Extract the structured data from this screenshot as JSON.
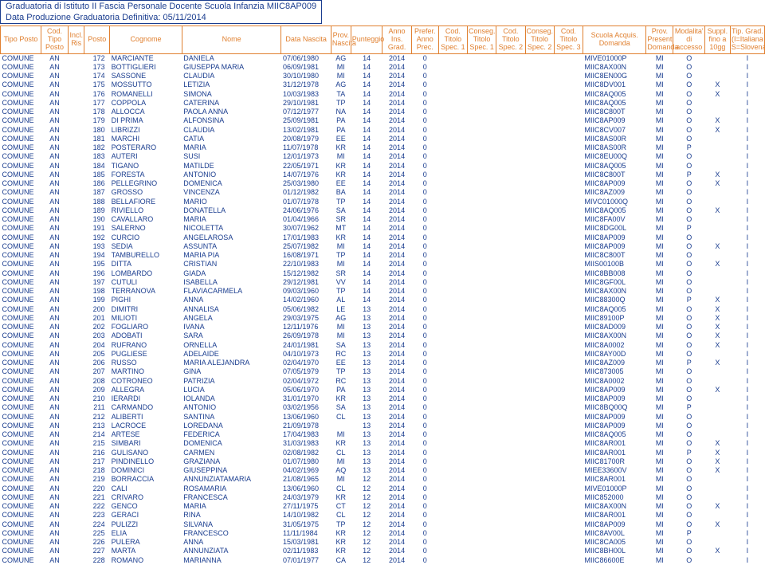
{
  "title_line1": "Graduatoria di Istituto II Fascia Personale Docente Scuola Infanzia MIIC8AP009",
  "title_line2": "Data Produzione Graduatoria Definitiva: 05/11/2014",
  "headers": {
    "tipo_posto": "Tipo Posto",
    "cod_tipo_posto": "Cod. Tipo Posto",
    "incl_ris": "Incl. Ris",
    "posto": "Posto",
    "cognome": "Cognome",
    "nome": "Nome",
    "data_nascita": "Data Nascita",
    "prov_nascita": "Prov. Nascita",
    "punteggio": "Punteggio",
    "anno_ins_grad": "Anno Ins. Grad.",
    "prefer_anno_prec": "Prefer. Anno Prec.",
    "cod_titolo_spec1": "Cod. Titolo Spec. 1",
    "conseg_titolo_spec1": "Conseg. Titolo Spec. 1",
    "cod_titolo_spec2": "Cod. Titolo Spec. 2",
    "conseg_titolo_spec2": "Conseg. Titolo Spec. 2",
    "cod_titolo_spec3": "Cod. Titolo Spec. 3",
    "scuola_acquis": "Scuola Acquis. Domanda",
    "prov_present": "Prov. Present. Domanda",
    "modalita": "Modalita' di accesso",
    "suppl": "Suppl. fino a 10gg",
    "tip_grad": "Tip. Grad. (I=Italiana S=Slovena)"
  },
  "rows": [
    {
      "tp": "COMUNE",
      "ctp": "AN",
      "p": "172",
      "cog": "MARCIANTE",
      "nom": "DANIELA",
      "dn": "07/06/1980",
      "pn": "AG",
      "pt": "14",
      "ai": "2014",
      "pr": "0",
      "sc": "MIVE01000P",
      "pd": "MI",
      "mo": "O",
      "su": "",
      "tg": "I"
    },
    {
      "tp": "COMUNE",
      "ctp": "AN",
      "p": "173",
      "cog": "BOTTIGLIERI",
      "nom": "GIUSEPPA MARIA",
      "dn": "06/09/1981",
      "pn": "MI",
      "pt": "14",
      "ai": "2014",
      "pr": "0",
      "sc": "MIIC8AX00N",
      "pd": "MI",
      "mo": "O",
      "su": "",
      "tg": "I"
    },
    {
      "tp": "COMUNE",
      "ctp": "AN",
      "p": "174",
      "cog": "SASSONE",
      "nom": "CLAUDIA",
      "dn": "30/10/1980",
      "pn": "MI",
      "pt": "14",
      "ai": "2014",
      "pr": "0",
      "sc": "MIIC8EN00G",
      "pd": "MI",
      "mo": "O",
      "su": "",
      "tg": "I"
    },
    {
      "tp": "COMUNE",
      "ctp": "AN",
      "p": "175",
      "cog": "MOSSUTTO",
      "nom": "LETIZIA",
      "dn": "31/12/1978",
      "pn": "AG",
      "pt": "14",
      "ai": "2014",
      "pr": "0",
      "sc": "MIIC8DV001",
      "pd": "MI",
      "mo": "O",
      "su": "X",
      "tg": "I"
    },
    {
      "tp": "COMUNE",
      "ctp": "AN",
      "p": "176",
      "cog": "ROMANELLI",
      "nom": "SIMONA",
      "dn": "10/03/1983",
      "pn": "TA",
      "pt": "14",
      "ai": "2014",
      "pr": "0",
      "sc": "MIIC8AQ005",
      "pd": "MI",
      "mo": "O",
      "su": "X",
      "tg": "I"
    },
    {
      "tp": "COMUNE",
      "ctp": "AN",
      "p": "177",
      "cog": "COPPOLA",
      "nom": "CATERINA",
      "dn": "29/10/1981",
      "pn": "TP",
      "pt": "14",
      "ai": "2014",
      "pr": "0",
      "sc": "MIIC8AQ005",
      "pd": "MI",
      "mo": "O",
      "su": "",
      "tg": "I"
    },
    {
      "tp": "COMUNE",
      "ctp": "AN",
      "p": "178",
      "cog": "ALLOCCA",
      "nom": "PAOLA ANNA",
      "dn": "07/12/1977",
      "pn": "NA",
      "pt": "14",
      "ai": "2014",
      "pr": "0",
      "sc": "MIIC8C800T",
      "pd": "MI",
      "mo": "O",
      "su": "",
      "tg": "I"
    },
    {
      "tp": "COMUNE",
      "ctp": "AN",
      "p": "179",
      "cog": "DI PRIMA",
      "nom": "ALFONSINA",
      "dn": "25/09/1981",
      "pn": "PA",
      "pt": "14",
      "ai": "2014",
      "pr": "0",
      "sc": "MIIC8AP009",
      "pd": "MI",
      "mo": "O",
      "su": "X",
      "tg": "I"
    },
    {
      "tp": "COMUNE",
      "ctp": "AN",
      "p": "180",
      "cog": "LIBRIZZI",
      "nom": "CLAUDIA",
      "dn": "13/02/1981",
      "pn": "PA",
      "pt": "14",
      "ai": "2014",
      "pr": "0",
      "sc": "MIIC8CV007",
      "pd": "MI",
      "mo": "O",
      "su": "X",
      "tg": "I"
    },
    {
      "tp": "COMUNE",
      "ctp": "AN",
      "p": "181",
      "cog": "MARCHI",
      "nom": "CATIA",
      "dn": "20/08/1979",
      "pn": "EE",
      "pt": "14",
      "ai": "2014",
      "pr": "0",
      "sc": "MIIC8AS00R",
      "pd": "MI",
      "mo": "O",
      "su": "",
      "tg": "I"
    },
    {
      "tp": "COMUNE",
      "ctp": "AN",
      "p": "182",
      "cog": "POSTERARO",
      "nom": "MARIA",
      "dn": "11/07/1978",
      "pn": "KR",
      "pt": "14",
      "ai": "2014",
      "pr": "0",
      "sc": "MIIC8AS00R",
      "pd": "MI",
      "mo": "P",
      "su": "",
      "tg": "I"
    },
    {
      "tp": "COMUNE",
      "ctp": "AN",
      "p": "183",
      "cog": "AUTERI",
      "nom": "SUSI",
      "dn": "12/01/1973",
      "pn": "MI",
      "pt": "14",
      "ai": "2014",
      "pr": "0",
      "sc": "MIIC8EU00Q",
      "pd": "MI",
      "mo": "O",
      "su": "",
      "tg": "I"
    },
    {
      "tp": "COMUNE",
      "ctp": "AN",
      "p": "184",
      "cog": "TIGANO",
      "nom": "MATILDE",
      "dn": "22/05/1971",
      "pn": "KR",
      "pt": "14",
      "ai": "2014",
      "pr": "0",
      "sc": "MIIC8AQ005",
      "pd": "MI",
      "mo": "O",
      "su": "",
      "tg": "I"
    },
    {
      "tp": "COMUNE",
      "ctp": "AN",
      "p": "185",
      "cog": "FORESTA",
      "nom": "ANTONIO",
      "dn": "14/07/1976",
      "pn": "KR",
      "pt": "14",
      "ai": "2014",
      "pr": "0",
      "sc": "MIIC8C800T",
      "pd": "MI",
      "mo": "P",
      "su": "X",
      "tg": "I"
    },
    {
      "tp": "COMUNE",
      "ctp": "AN",
      "p": "186",
      "cog": "PELLEGRINO",
      "nom": "DOMENICA",
      "dn": "25/03/1980",
      "pn": "EE",
      "pt": "14",
      "ai": "2014",
      "pr": "0",
      "sc": "MIIC8AP009",
      "pd": "MI",
      "mo": "O",
      "su": "X",
      "tg": "I"
    },
    {
      "tp": "COMUNE",
      "ctp": "AN",
      "p": "187",
      "cog": "GROSSO",
      "nom": "VINCENZA",
      "dn": "01/12/1982",
      "pn": "BA",
      "pt": "14",
      "ai": "2014",
      "pr": "0",
      "sc": "MIIC8AZ009",
      "pd": "MI",
      "mo": "O",
      "su": "",
      "tg": "I"
    },
    {
      "tp": "COMUNE",
      "ctp": "AN",
      "p": "188",
      "cog": "BELLAFIORE",
      "nom": "MARIO",
      "dn": "01/07/1978",
      "pn": "TP",
      "pt": "14",
      "ai": "2014",
      "pr": "0",
      "sc": "MIVC01000Q",
      "pd": "MI",
      "mo": "O",
      "su": "",
      "tg": "I"
    },
    {
      "tp": "COMUNE",
      "ctp": "AN",
      "p": "189",
      "cog": "RIVIELLO",
      "nom": "DONATELLA",
      "dn": "24/06/1976",
      "pn": "SA",
      "pt": "14",
      "ai": "2014",
      "pr": "0",
      "sc": "MIIC8AQ005",
      "pd": "MI",
      "mo": "O",
      "su": "X",
      "tg": "I"
    },
    {
      "tp": "COMUNE",
      "ctp": "AN",
      "p": "190",
      "cog": "CAVALLARO",
      "nom": "MARIA",
      "dn": "01/04/1966",
      "pn": "SR",
      "pt": "14",
      "ai": "2014",
      "pr": "0",
      "sc": "MIIC8FA00V",
      "pd": "MI",
      "mo": "O",
      "su": "",
      "tg": "I"
    },
    {
      "tp": "COMUNE",
      "ctp": "AN",
      "p": "191",
      "cog": "SALERNO",
      "nom": "NICOLETTA",
      "dn": "30/07/1962",
      "pn": "MT",
      "pt": "14",
      "ai": "2014",
      "pr": "0",
      "sc": "MIIC8DG00L",
      "pd": "MI",
      "mo": "P",
      "su": "",
      "tg": "I"
    },
    {
      "tp": "COMUNE",
      "ctp": "AN",
      "p": "192",
      "cog": "CURCIO",
      "nom": "ANGELAROSA",
      "dn": "17/01/1983",
      "pn": "KR",
      "pt": "14",
      "ai": "2014",
      "pr": "0",
      "sc": "MIIC8AP009",
      "pd": "MI",
      "mo": "O",
      "su": "",
      "tg": "I"
    },
    {
      "tp": "COMUNE",
      "ctp": "AN",
      "p": "193",
      "cog": "SEDIA",
      "nom": "ASSUNTA",
      "dn": "25/07/1982",
      "pn": "MI",
      "pt": "14",
      "ai": "2014",
      "pr": "0",
      "sc": "MIIC8AP009",
      "pd": "MI",
      "mo": "O",
      "su": "X",
      "tg": "I"
    },
    {
      "tp": "COMUNE",
      "ctp": "AN",
      "p": "194",
      "cog": "TAMBURELLO",
      "nom": "MARIA PIA",
      "dn": "16/08/1971",
      "pn": "TP",
      "pt": "14",
      "ai": "2014",
      "pr": "0",
      "sc": "MIIC8C800T",
      "pd": "MI",
      "mo": "O",
      "su": "",
      "tg": "I"
    },
    {
      "tp": "COMUNE",
      "ctp": "AN",
      "p": "195",
      "cog": "DITTA",
      "nom": "CRISTIAN",
      "dn": "22/10/1983",
      "pn": "MI",
      "pt": "14",
      "ai": "2014",
      "pr": "0",
      "sc": "MIIS00100B",
      "pd": "MI",
      "mo": "O",
      "su": "X",
      "tg": "I"
    },
    {
      "tp": "COMUNE",
      "ctp": "AN",
      "p": "196",
      "cog": "LOMBARDO",
      "nom": "GIADA",
      "dn": "15/12/1982",
      "pn": "SR",
      "pt": "14",
      "ai": "2014",
      "pr": "0",
      "sc": "MIIC8BB008",
      "pd": "MI",
      "mo": "O",
      "su": "",
      "tg": "I"
    },
    {
      "tp": "COMUNE",
      "ctp": "AN",
      "p": "197",
      "cog": "CUTULI",
      "nom": "ISABELLA",
      "dn": "29/12/1981",
      "pn": "VV",
      "pt": "14",
      "ai": "2014",
      "pr": "0",
      "sc": "MIIC8GF00L",
      "pd": "MI",
      "mo": "O",
      "su": "",
      "tg": "I"
    },
    {
      "tp": "COMUNE",
      "ctp": "AN",
      "p": "198",
      "cog": "TERRANOVA",
      "nom": "FLAVIACARMELA",
      "dn": "09/03/1960",
      "pn": "TP",
      "pt": "14",
      "ai": "2014",
      "pr": "0",
      "sc": "MIIC8AX00N",
      "pd": "MI",
      "mo": "O",
      "su": "",
      "tg": "I"
    },
    {
      "tp": "COMUNE",
      "ctp": "AN",
      "p": "199",
      "cog": "PIGHI",
      "nom": "ANNA",
      "dn": "14/02/1960",
      "pn": "AL",
      "pt": "14",
      "ai": "2014",
      "pr": "0",
      "sc": "MIIC88300Q",
      "pd": "MI",
      "mo": "P",
      "su": "X",
      "tg": "I"
    },
    {
      "tp": "COMUNE",
      "ctp": "AN",
      "p": "200",
      "cog": "DIMITRI",
      "nom": "ANNALISA",
      "dn": "05/06/1982",
      "pn": "LE",
      "pt": "13",
      "ai": "2014",
      "pr": "0",
      "sc": "MIIC8AQ005",
      "pd": "MI",
      "mo": "O",
      "su": "X",
      "tg": "I"
    },
    {
      "tp": "COMUNE",
      "ctp": "AN",
      "p": "201",
      "cog": "MILIOTI",
      "nom": "ANGELA",
      "dn": "29/03/1975",
      "pn": "AG",
      "pt": "13",
      "ai": "2014",
      "pr": "0",
      "sc": "MIIC89100P",
      "pd": "MI",
      "mo": "O",
      "su": "X",
      "tg": "I"
    },
    {
      "tp": "COMUNE",
      "ctp": "AN",
      "p": "202",
      "cog": "FOGLIARO",
      "nom": "IVANA",
      "dn": "12/11/1976",
      "pn": "MI",
      "pt": "13",
      "ai": "2014",
      "pr": "0",
      "sc": "MIIC8AD009",
      "pd": "MI",
      "mo": "O",
      "su": "X",
      "tg": "I"
    },
    {
      "tp": "COMUNE",
      "ctp": "AN",
      "p": "203",
      "cog": "ADOBATI",
      "nom": "SARA",
      "dn": "26/09/1978",
      "pn": "MI",
      "pt": "13",
      "ai": "2014",
      "pr": "0",
      "sc": "MIIC8AX00N",
      "pd": "MI",
      "mo": "O",
      "su": "X",
      "tg": "I"
    },
    {
      "tp": "COMUNE",
      "ctp": "AN",
      "p": "204",
      "cog": "RUFRANO",
      "nom": "ORNELLA",
      "dn": "24/01/1981",
      "pn": "SA",
      "pt": "13",
      "ai": "2014",
      "pr": "0",
      "sc": "MIIC8A0002",
      "pd": "MI",
      "mo": "O",
      "su": "X",
      "tg": "I"
    },
    {
      "tp": "COMUNE",
      "ctp": "AN",
      "p": "205",
      "cog": "PUGLIESE",
      "nom": "ADELAIDE",
      "dn": "04/10/1973",
      "pn": "RC",
      "pt": "13",
      "ai": "2014",
      "pr": "0",
      "sc": "MIIC8AY00D",
      "pd": "MI",
      "mo": "O",
      "su": "",
      "tg": "I"
    },
    {
      "tp": "COMUNE",
      "ctp": "AN",
      "p": "206",
      "cog": "RUSSO",
      "nom": "MARIA ALEJANDRA",
      "dn": "02/04/1970",
      "pn": "EE",
      "pt": "13",
      "ai": "2014",
      "pr": "0",
      "sc": "MIIC8AZ009",
      "pd": "MI",
      "mo": "P",
      "su": "X",
      "tg": "I"
    },
    {
      "tp": "COMUNE",
      "ctp": "AN",
      "p": "207",
      "cog": "MARTINO",
      "nom": "GINA",
      "dn": "07/05/1979",
      "pn": "TP",
      "pt": "13",
      "ai": "2014",
      "pr": "0",
      "sc": "MIIC873005",
      "pd": "MI",
      "mo": "O",
      "su": "",
      "tg": "I"
    },
    {
      "tp": "COMUNE",
      "ctp": "AN",
      "p": "208",
      "cog": "COTRONEO",
      "nom": "PATRIZIA",
      "dn": "02/04/1972",
      "pn": "RC",
      "pt": "13",
      "ai": "2014",
      "pr": "0",
      "sc": "MIIC8A0002",
      "pd": "MI",
      "mo": "O",
      "su": "",
      "tg": "I"
    },
    {
      "tp": "COMUNE",
      "ctp": "AN",
      "p": "209",
      "cog": "ALLEGRA",
      "nom": "LUCIA",
      "dn": "05/06/1970",
      "pn": "PA",
      "pt": "13",
      "ai": "2014",
      "pr": "0",
      "sc": "MIIC8AP009",
      "pd": "MI",
      "mo": "O",
      "su": "X",
      "tg": "I"
    },
    {
      "tp": "COMUNE",
      "ctp": "AN",
      "p": "210",
      "cog": "IERARDI",
      "nom": "IOLANDA",
      "dn": "31/01/1970",
      "pn": "KR",
      "pt": "13",
      "ai": "2014",
      "pr": "0",
      "sc": "MIIC8AP009",
      "pd": "MI",
      "mo": "O",
      "su": "",
      "tg": "I"
    },
    {
      "tp": "COMUNE",
      "ctp": "AN",
      "p": "211",
      "cog": "CARMANDO",
      "nom": "ANTONIO",
      "dn": "03/02/1956",
      "pn": "SA",
      "pt": "13",
      "ai": "2014",
      "pr": "0",
      "sc": "MIIC8BQ00Q",
      "pd": "MI",
      "mo": "P",
      "su": "",
      "tg": "I"
    },
    {
      "tp": "COMUNE",
      "ctp": "AN",
      "p": "212",
      "cog": "ALIBERTI",
      "nom": "SANTINA",
      "dn": "13/06/1960",
      "pn": "CL",
      "pt": "13",
      "ai": "2014",
      "pr": "0",
      "sc": "MIIC8AP009",
      "pd": "MI",
      "mo": "O",
      "su": "",
      "tg": "I"
    },
    {
      "tp": "COMUNE",
      "ctp": "AN",
      "p": "213",
      "cog": "LACROCE",
      "nom": "LOREDANA",
      "dn": "21/09/1978",
      "pn": "",
      "pt": "13",
      "ai": "2014",
      "pr": "0",
      "sc": "MIIC8AP009",
      "pd": "MI",
      "mo": "O",
      "su": "",
      "tg": "I"
    },
    {
      "tp": "COMUNE",
      "ctp": "AN",
      "p": "214",
      "cog": "ARTESE",
      "nom": "FEDERICA",
      "dn": "17/04/1983",
      "pn": "MI",
      "pt": "13",
      "ai": "2014",
      "pr": "0",
      "sc": "MIIC8AQ005",
      "pd": "MI",
      "mo": "O",
      "su": "",
      "tg": "I"
    },
    {
      "tp": "COMUNE",
      "ctp": "AN",
      "p": "215",
      "cog": "SIMBARI",
      "nom": "DOMENICA",
      "dn": "31/03/1983",
      "pn": "KR",
      "pt": "13",
      "ai": "2014",
      "pr": "0",
      "sc": "MIIC8AR001",
      "pd": "MI",
      "mo": "O",
      "su": "X",
      "tg": "I"
    },
    {
      "tp": "COMUNE",
      "ctp": "AN",
      "p": "216",
      "cog": "GULISANO",
      "nom": "CARMEN",
      "dn": "02/08/1982",
      "pn": "CL",
      "pt": "13",
      "ai": "2014",
      "pr": "0",
      "sc": "MIIC8AR001",
      "pd": "MI",
      "mo": "P",
      "su": "X",
      "tg": "I"
    },
    {
      "tp": "COMUNE",
      "ctp": "AN",
      "p": "217",
      "cog": "PINDINELLO",
      "nom": "GRAZIANA",
      "dn": "01/07/1980",
      "pn": "MI",
      "pt": "13",
      "ai": "2014",
      "pr": "0",
      "sc": "MIIC81700R",
      "pd": "MI",
      "mo": "O",
      "su": "X",
      "tg": "I"
    },
    {
      "tp": "COMUNE",
      "ctp": "AN",
      "p": "218",
      "cog": "DOMINICI",
      "nom": "GIUSEPPINA",
      "dn": "04/02/1969",
      "pn": "AQ",
      "pt": "13",
      "ai": "2014",
      "pr": "0",
      "sc": "MIEE33600V",
      "pd": "MI",
      "mo": "O",
      "su": "X",
      "tg": "I"
    },
    {
      "tp": "COMUNE",
      "ctp": "AN",
      "p": "219",
      "cog": "BORRACCIA",
      "nom": "ANNUNZIATAMARIA",
      "dn": "21/08/1965",
      "pn": "MI",
      "pt": "12",
      "ai": "2014",
      "pr": "0",
      "sc": "MIIC8AR001",
      "pd": "MI",
      "mo": "O",
      "su": "",
      "tg": "I"
    },
    {
      "tp": "COMUNE",
      "ctp": "AN",
      "p": "220",
      "cog": "CALI",
      "nom": "ROSAMARIA",
      "dn": "13/06/1960",
      "pn": "CL",
      "pt": "12",
      "ai": "2014",
      "pr": "0",
      "sc": "MIVE01000P",
      "pd": "MI",
      "mo": "O",
      "su": "",
      "tg": "I"
    },
    {
      "tp": "COMUNE",
      "ctp": "AN",
      "p": "221",
      "cog": "CRIVARO",
      "nom": "FRANCESCA",
      "dn": "24/03/1979",
      "pn": "KR",
      "pt": "12",
      "ai": "2014",
      "pr": "0",
      "sc": "MIIC852000",
      "pd": "MI",
      "mo": "O",
      "su": "",
      "tg": "I"
    },
    {
      "tp": "COMUNE",
      "ctp": "AN",
      "p": "222",
      "cog": "GENCO",
      "nom": "MARIA",
      "dn": "27/11/1975",
      "pn": "CT",
      "pt": "12",
      "ai": "2014",
      "pr": "0",
      "sc": "MIIC8AX00N",
      "pd": "MI",
      "mo": "O",
      "su": "X",
      "tg": "I"
    },
    {
      "tp": "COMUNE",
      "ctp": "AN",
      "p": "223",
      "cog": "GERACI",
      "nom": "RINA",
      "dn": "14/10/1982",
      "pn": "CL",
      "pt": "12",
      "ai": "2014",
      "pr": "0",
      "sc": "MIIC8AR001",
      "pd": "MI",
      "mo": "O",
      "su": "",
      "tg": "I"
    },
    {
      "tp": "COMUNE",
      "ctp": "AN",
      "p": "224",
      "cog": "PULIZZI",
      "nom": "SILVANA",
      "dn": "31/05/1975",
      "pn": "TP",
      "pt": "12",
      "ai": "2014",
      "pr": "0",
      "sc": "MIIC8AP009",
      "pd": "MI",
      "mo": "O",
      "su": "X",
      "tg": "I"
    },
    {
      "tp": "COMUNE",
      "ctp": "AN",
      "p": "225",
      "cog": "ELIA",
      "nom": "FRANCESCO",
      "dn": "11/11/1984",
      "pn": "KR",
      "pt": "12",
      "ai": "2014",
      "pr": "0",
      "sc": "MIIC8AV00L",
      "pd": "MI",
      "mo": "P",
      "su": "",
      "tg": "I"
    },
    {
      "tp": "COMUNE",
      "ctp": "AN",
      "p": "226",
      "cog": "PULERA",
      "nom": "ANNA",
      "dn": "15/03/1981",
      "pn": "KR",
      "pt": "12",
      "ai": "2014",
      "pr": "0",
      "sc": "MIIC8CA005",
      "pd": "MI",
      "mo": "O",
      "su": "",
      "tg": "I"
    },
    {
      "tp": "COMUNE",
      "ctp": "AN",
      "p": "227",
      "cog": "MARTA",
      "nom": "ANNUNZIATA",
      "dn": "02/11/1983",
      "pn": "KR",
      "pt": "12",
      "ai": "2014",
      "pr": "0",
      "sc": "MIIC8BH00L",
      "pd": "MI",
      "mo": "O",
      "su": "X",
      "tg": "I"
    },
    {
      "tp": "COMUNE",
      "ctp": "AN",
      "p": "228",
      "cog": "ROMANO",
      "nom": "MARIANNA",
      "dn": "07/01/1977",
      "pn": "CA",
      "pt": "12",
      "ai": "2014",
      "pr": "0",
      "sc": "MIIC86600E",
      "pd": "MI",
      "mo": "O",
      "su": "",
      "tg": "I"
    }
  ]
}
